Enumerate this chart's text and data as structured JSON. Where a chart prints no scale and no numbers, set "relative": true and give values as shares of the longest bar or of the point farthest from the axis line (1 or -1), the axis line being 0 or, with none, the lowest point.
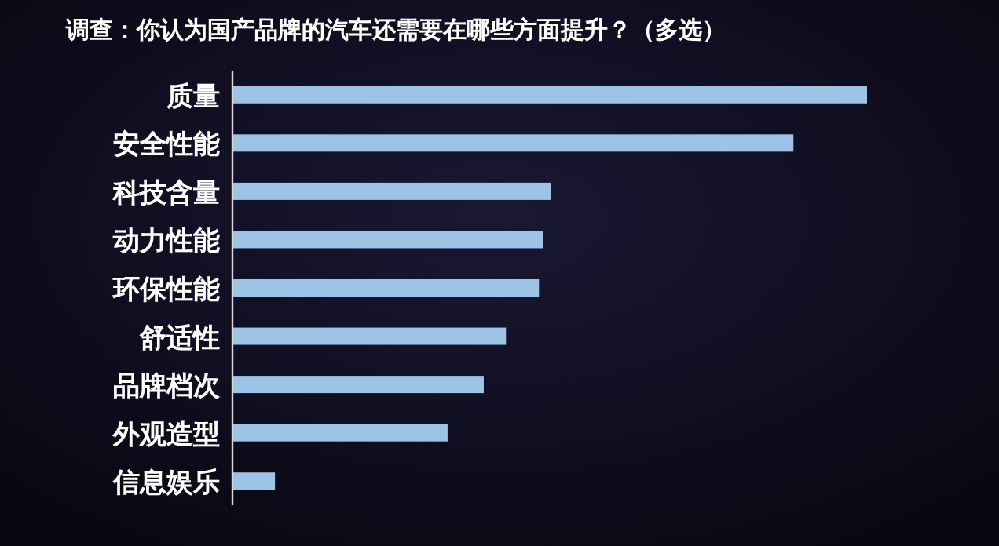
{
  "chart_data": {
    "type": "bar",
    "orientation": "horizontal",
    "relative": true,
    "title": "调查：你认为国产品牌的汽车还需要在哪些方面提升？（多选）",
    "categories": [
      "质量",
      "安全性能",
      "科技含量",
      "动力性能",
      "环保性能",
      "舒适性",
      "品牌档次",
      "外观造型",
      "信息娱乐"
    ],
    "values": [
      1,
      0.884,
      0.502,
      0.49,
      0.483,
      0.431,
      0.396,
      0.339,
      0.067
    ],
    "color": "#9dc3e6"
  }
}
